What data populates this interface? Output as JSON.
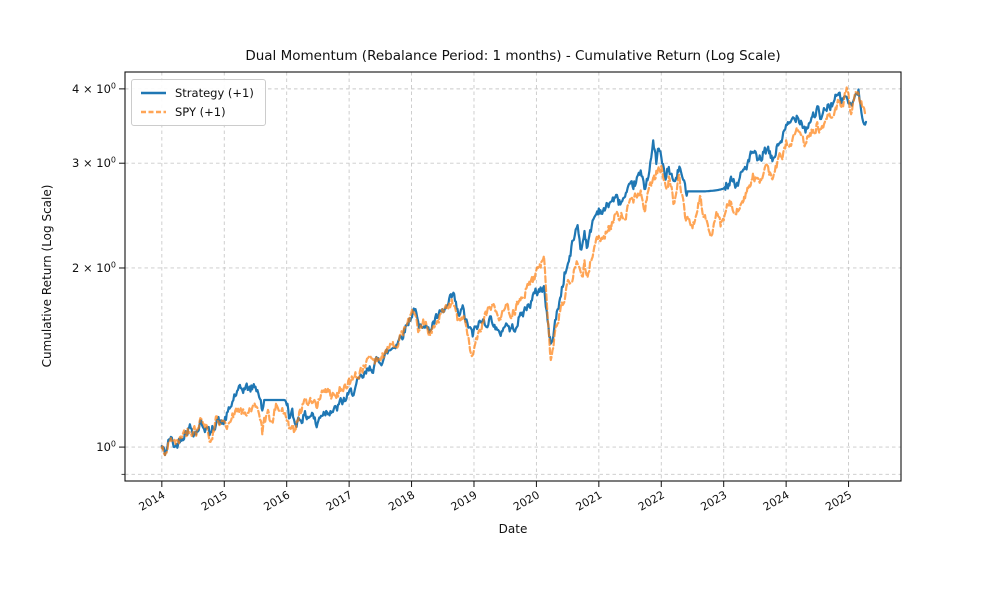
{
  "figure": {
    "title": "Dual Momentum (Rebalance Period: 1 months) - Cumulative Return (Log Scale)",
    "xlabel": "Date",
    "ylabel": "Cumulative Return (Log Scale)"
  },
  "legend": {
    "items": [
      {
        "label": "Strategy (+1)",
        "color": "#1f77b4",
        "style": "solid",
        "opacity": 1.0
      },
      {
        "label": "SPY (+1)",
        "color": "#ff7f0e",
        "style": "dashed",
        "opacity": 0.7
      }
    ]
  },
  "chart_data": {
    "type": "line",
    "title": "Dual Momentum (Rebalance Period: 1 months) - Cumulative Return (Log Scale)",
    "xlabel": "Date",
    "ylabel": "Cumulative Return (Log Scale)",
    "y_scale": "log",
    "grid": true,
    "legend_position": "upper left",
    "x_ticks": [
      2014,
      2015,
      2016,
      2017,
      2018,
      2019,
      2020,
      2021,
      2022,
      2023,
      2024,
      2025
    ],
    "y_ticks": [
      {
        "value": 1,
        "label": "10^0"
      },
      {
        "value": 2,
        "label": "2 × 10^0"
      },
      {
        "value": 3,
        "label": "3 × 10^0"
      },
      {
        "value": 4,
        "label": "4 × 10^0"
      }
    ],
    "y_minor_gridlines": [
      0.9
    ],
    "x_range": [
      2013.41,
      2025.84
    ],
    "y_range": [
      0.877,
      4.27
    ],
    "grid_color": "#c9c9c9",
    "x": [
      2014.0,
      2014.05,
      2014.13,
      2014.22,
      2014.33,
      2014.45,
      2014.55,
      2014.63,
      2014.72,
      2014.78,
      2014.88,
      2014.95,
      2015.0,
      2015.1,
      2015.16,
      2015.25,
      2015.33,
      2015.42,
      2015.5,
      2015.56,
      2015.61,
      2015.64,
      2015.7,
      2015.75,
      2015.83,
      2015.9,
      2015.96,
      2016.0,
      2016.05,
      2016.09,
      2016.13,
      2016.2,
      2016.28,
      2016.35,
      2016.42,
      2016.48,
      2016.55,
      2016.62,
      2016.7,
      2016.78,
      2016.85,
      2016.93,
      2017.0,
      2017.1,
      2017.2,
      2017.33,
      2017.45,
      2017.56,
      2017.67,
      2017.8,
      2017.92,
      2018.05,
      2018.12,
      2018.2,
      2018.27,
      2018.35,
      2018.45,
      2018.55,
      2018.67,
      2018.75,
      2018.82,
      2018.88,
      2018.98,
      2019.05,
      2019.12,
      2019.2,
      2019.3,
      2019.4,
      2019.5,
      2019.6,
      2019.7,
      2019.8,
      2019.9,
      2020.0,
      2020.08,
      2020.12,
      2020.18,
      2020.23,
      2020.3,
      2020.38,
      2020.45,
      2020.52,
      2020.6,
      2020.66,
      2020.72,
      2020.77,
      2020.82,
      2020.9,
      2021.0,
      2021.08,
      2021.17,
      2021.25,
      2021.33,
      2021.42,
      2021.5,
      2021.58,
      2021.67,
      2021.73,
      2021.78,
      2021.87,
      2021.92,
      2021.96,
      2022.0,
      2022.07,
      2022.12,
      2022.21,
      2022.29,
      2022.38,
      2022.42,
      2022.5,
      2022.62,
      2022.7,
      2022.79,
      2022.87,
      2022.95,
      2023.0,
      2023.08,
      2023.13,
      2023.2,
      2023.3,
      2023.42,
      2023.47,
      2023.55,
      2023.63,
      2023.7,
      2023.78,
      2023.86,
      2023.94,
      2024.0,
      2024.08,
      2024.17,
      2024.25,
      2024.31,
      2024.42,
      2024.5,
      2024.56,
      2024.65,
      2024.75,
      2024.83,
      2024.9,
      2024.97,
      2025.04,
      2025.1,
      2025.16,
      2025.22,
      2025.28
    ],
    "series": [
      {
        "name": "Strategy (+1)",
        "color": "#1f77b4",
        "line_style": "solid",
        "line_width": 2.2,
        "opacity": 1.0,
        "flat_ranges": [
          [
            2015.62,
            2015.98
          ],
          [
            2022.41,
            2023.02
          ]
        ],
        "values": [
          1.0,
          0.975,
          1.035,
          1.0,
          1.05,
          1.08,
          1.06,
          1.1,
          1.075,
          1.045,
          1.12,
          1.09,
          1.105,
          1.16,
          1.22,
          1.24,
          1.26,
          1.25,
          1.27,
          1.23,
          1.14,
          1.2,
          1.2,
          1.2,
          1.2,
          1.2,
          1.2,
          1.195,
          1.12,
          1.135,
          1.095,
          1.12,
          1.125,
          1.13,
          1.14,
          1.08,
          1.14,
          1.15,
          1.16,
          1.15,
          1.18,
          1.2,
          1.22,
          1.26,
          1.3,
          1.35,
          1.39,
          1.42,
          1.46,
          1.52,
          1.6,
          1.72,
          1.57,
          1.64,
          1.56,
          1.62,
          1.66,
          1.7,
          1.8,
          1.66,
          1.7,
          1.62,
          1.54,
          1.6,
          1.62,
          1.63,
          1.64,
          1.53,
          1.62,
          1.57,
          1.63,
          1.69,
          1.75,
          1.82,
          1.85,
          1.86,
          1.62,
          1.48,
          1.62,
          1.78,
          1.95,
          2.05,
          2.25,
          2.36,
          2.14,
          2.32,
          2.16,
          2.4,
          2.52,
          2.48,
          2.58,
          2.62,
          2.58,
          2.62,
          2.7,
          2.78,
          2.88,
          2.72,
          2.85,
          3.22,
          3.02,
          3.18,
          3.05,
          2.82,
          2.95,
          2.76,
          2.95,
          2.72,
          2.69,
          2.69,
          2.69,
          2.69,
          2.695,
          2.7,
          2.71,
          2.72,
          2.8,
          2.85,
          2.74,
          2.9,
          3.05,
          3.13,
          3.0,
          3.1,
          3.16,
          3.02,
          3.2,
          3.32,
          3.42,
          3.52,
          3.62,
          3.55,
          3.42,
          3.6,
          3.68,
          3.55,
          3.72,
          3.8,
          3.88,
          3.82,
          3.9,
          3.7,
          3.88,
          3.92,
          3.65,
          3.52
        ]
      },
      {
        "name": "SPY (+1)",
        "color": "#ff7f0e",
        "line_style": "dashed",
        "line_width": 2.2,
        "opacity": 0.7,
        "flat_ranges": [],
        "values": [
          1.0,
          0.955,
          1.03,
          1.005,
          1.05,
          1.075,
          1.06,
          1.1,
          1.07,
          1.035,
          1.115,
          1.08,
          1.09,
          1.11,
          1.13,
          1.14,
          1.16,
          1.15,
          1.17,
          1.13,
          1.05,
          1.1,
          1.13,
          1.1,
          1.17,
          1.16,
          1.14,
          1.13,
          1.08,
          1.1,
          1.06,
          1.13,
          1.18,
          1.2,
          1.21,
          1.17,
          1.225,
          1.24,
          1.235,
          1.205,
          1.25,
          1.27,
          1.28,
          1.32,
          1.35,
          1.39,
          1.41,
          1.44,
          1.47,
          1.53,
          1.6,
          1.7,
          1.56,
          1.62,
          1.55,
          1.6,
          1.65,
          1.7,
          1.76,
          1.63,
          1.67,
          1.58,
          1.41,
          1.52,
          1.6,
          1.67,
          1.73,
          1.62,
          1.74,
          1.67,
          1.74,
          1.81,
          1.89,
          1.95,
          2.02,
          2.06,
          1.68,
          1.39,
          1.56,
          1.68,
          1.8,
          1.88,
          1.98,
          2.05,
          1.92,
          2.02,
          1.93,
          2.12,
          2.28,
          2.25,
          2.33,
          2.42,
          2.46,
          2.48,
          2.55,
          2.62,
          2.68,
          2.55,
          2.65,
          2.82,
          2.88,
          2.95,
          2.97,
          2.72,
          2.85,
          2.55,
          2.85,
          2.45,
          2.4,
          2.3,
          2.62,
          2.42,
          2.23,
          2.5,
          2.36,
          2.42,
          2.55,
          2.57,
          2.47,
          2.6,
          2.75,
          2.85,
          2.78,
          2.88,
          2.95,
          2.82,
          3.02,
          3.1,
          3.25,
          3.3,
          3.38,
          3.32,
          3.22,
          3.42,
          3.5,
          3.38,
          3.58,
          3.68,
          3.78,
          3.75,
          3.96,
          3.68,
          3.92,
          3.96,
          3.72,
          3.62
        ]
      }
    ],
    "noise": {
      "amplitude": 0.02,
      "seed": 42,
      "step_years": 0.014
    }
  }
}
